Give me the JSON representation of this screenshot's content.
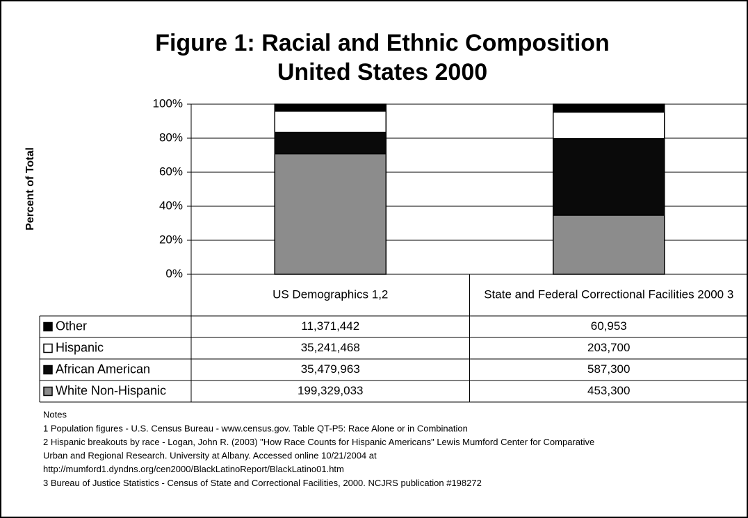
{
  "chart_data": {
    "type": "bar",
    "stacking": "percent",
    "title": "Figure 1: Racial and Ethnic Composition",
    "subtitle": "United States 2000",
    "y_label": "Percent of Total",
    "categories": [
      "US Demographics 1,2",
      "State and Federal Correctional Facilities 2000 3"
    ],
    "series": [
      {
        "name": "Other",
        "color": "#000000",
        "values": [
          11371442,
          60953
        ],
        "value_labels": [
          "11,371,442",
          "60,953"
        ]
      },
      {
        "name": "Hispanic",
        "color": "#ffffff",
        "values": [
          35241468,
          203700
        ],
        "value_labels": [
          "35,241,468",
          "203,700"
        ]
      },
      {
        "name": "African American",
        "color": "#0a0a0a",
        "values": [
          35479963,
          587300
        ],
        "value_labels": [
          "35,479,963",
          "587,300"
        ]
      },
      {
        "name": "White Non-Hispanic",
        "color": "#8c8c8c",
        "values": [
          199329033,
          453300
        ],
        "value_labels": [
          "199,329,033",
          "453,300"
        ]
      }
    ],
    "ylim": [
      0,
      100
    ],
    "yticks": [
      {
        "value": 0,
        "label": "0%"
      },
      {
        "value": 20,
        "label": "20%"
      },
      {
        "value": 40,
        "label": "40%"
      },
      {
        "value": 60,
        "label": "60%"
      },
      {
        "value": 80,
        "label": "80%"
      },
      {
        "value": 100,
        "label": "100%"
      }
    ],
    "grid": true
  },
  "notes": {
    "heading": "Notes",
    "lines": [
      "1 Population figures - U.S. Census Bureau - www.census.gov.  Table QT-P5: Race Alone or in Combination",
      "2 Hispanic breakouts by race - Logan, John R. (2003) \"How Race Counts for Hispanic Americans\"  Lewis Mumford Center for Comparative",
      "Urban and Regional Research.  University at Albany.  Accessed online 10/21/2004 at",
      "http://mumford1.dyndns.org/cen2000/BlackLatinoReport/BlackLatino01.htm",
      "3 Bureau of Justice Statistics - Census of State and Correctional Facilities, 2000.  NCJRS publication #198272"
    ]
  }
}
